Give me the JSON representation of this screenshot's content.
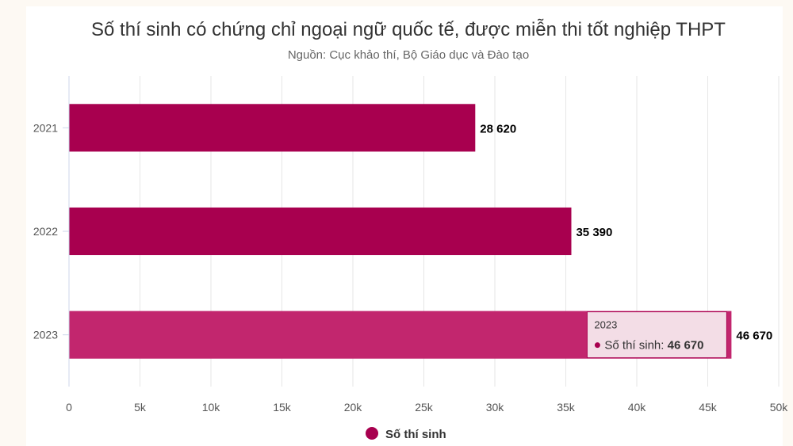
{
  "chart_data": {
    "type": "bar",
    "orientation": "horizontal",
    "title": "Số thí sinh có chứng chỉ ngoại ngữ quốc tế, được miễn thi tốt nghiệp THPT",
    "subtitle": "Nguồn: Cục khảo thí, Bộ Giáo dục và Đào tạo",
    "categories": [
      "2021",
      "2022",
      "2023"
    ],
    "series": [
      {
        "name": "Số thí sinh",
        "values": [
          28620,
          35390,
          46670
        ],
        "color": "#a8004f"
      }
    ],
    "data_labels": [
      "28 620",
      "35 390",
      "46 670"
    ],
    "x_ticks": [
      0,
      5000,
      10000,
      15000,
      20000,
      25000,
      30000,
      35000,
      40000,
      45000,
      50000
    ],
    "x_tick_labels": [
      "0",
      "5k",
      "10k",
      "15k",
      "20k",
      "25k",
      "30k",
      "35k",
      "40k",
      "45k",
      "50k"
    ],
    "xlim": [
      0,
      50000
    ],
    "grid": true,
    "legend_position": "bottom-center",
    "highlight_color": "#c2266e",
    "tooltip": {
      "category": "2023",
      "series_label": "Số thí sinh: ",
      "value_text": "46 670"
    }
  }
}
